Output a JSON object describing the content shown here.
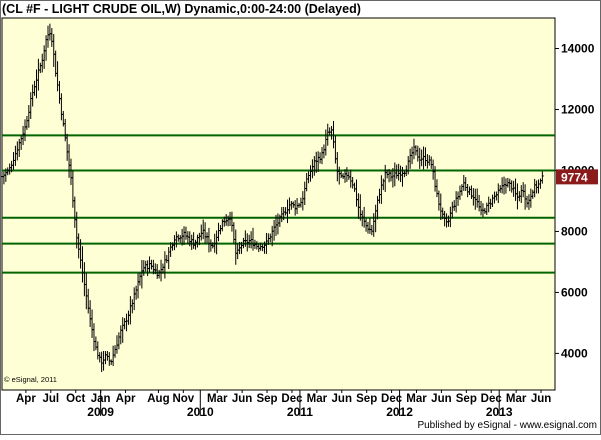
{
  "chart_data": {
    "type": "ohlc",
    "title": "(CL #F - LIGHT CRUDE OIL,W) Dynamic,0:00-24:00 (Delayed)",
    "xlabel": "",
    "ylabel": "",
    "ylim": [
      2800,
      15000
    ],
    "y_ticks": [
      4000,
      6000,
      8000,
      10000,
      12000,
      14000
    ],
    "y_tick_labels": [
      "4000",
      "6000",
      "8000",
      "10000",
      "12000",
      "14000"
    ],
    "x_month_labels": [
      "Apr",
      "Jul",
      "Oct",
      "Jan",
      "Apr",
      "Aug",
      "Nov",
      "Mar",
      "Jun",
      "Sep",
      "Dec",
      "Mar",
      "Jun",
      "Sep",
      "Dec",
      "Mar",
      "Jun",
      "Sep",
      "Dec",
      "Mar",
      "Jun"
    ],
    "x_year_labels": [
      "2009",
      "2010",
      "2011",
      "2012",
      "2013"
    ],
    "last_price_label": "9774",
    "horizontal_lines": [
      11150,
      10000,
      8450,
      7600,
      6650
    ],
    "grid": false,
    "series": [
      {
        "bar_color": "#000000",
        "close_path": [
          [
            2008.01,
            9800
          ],
          [
            2008.08,
            10000
          ],
          [
            2008.16,
            10700
          ],
          [
            2008.24,
            11400
          ],
          [
            2008.32,
            12600
          ],
          [
            2008.41,
            13600
          ],
          [
            2008.46,
            14400
          ],
          [
            2008.5,
            14600
          ],
          [
            2008.55,
            13200
          ],
          [
            2008.62,
            11600
          ],
          [
            2008.7,
            9800
          ],
          [
            2008.76,
            7800
          ],
          [
            2008.84,
            6200
          ],
          [
            2008.9,
            5000
          ],
          [
            2008.95,
            4200
          ],
          [
            2009.0,
            3700
          ],
          [
            2009.05,
            3900
          ],
          [
            2009.1,
            3700
          ],
          [
            2009.14,
            4100
          ],
          [
            2009.2,
            4700
          ],
          [
            2009.27,
            5200
          ],
          [
            2009.35,
            6000
          ],
          [
            2009.42,
            6800
          ],
          [
            2009.5,
            6900
          ],
          [
            2009.58,
            6600
          ],
          [
            2009.66,
            7100
          ],
          [
            2009.74,
            7800
          ],
          [
            2009.84,
            7900
          ],
          [
            2009.94,
            7600
          ],
          [
            2010.02,
            8000
          ],
          [
            2010.12,
            7500
          ],
          [
            2010.22,
            8300
          ],
          [
            2010.3,
            8500
          ],
          [
            2010.36,
            7200
          ],
          [
            2010.42,
            7600
          ],
          [
            2010.5,
            7700
          ],
          [
            2010.58,
            7500
          ],
          [
            2010.66,
            7600
          ],
          [
            2010.74,
            8100
          ],
          [
            2010.82,
            8500
          ],
          [
            2010.9,
            8900
          ],
          [
            2010.96,
            8800
          ],
          [
            2011.02,
            9000
          ],
          [
            2011.08,
            9800
          ],
          [
            2011.15,
            10300
          ],
          [
            2011.22,
            10500
          ],
          [
            2011.28,
            11200
          ],
          [
            2011.32,
            11300
          ],
          [
            2011.37,
            10000
          ],
          [
            2011.42,
            9700
          ],
          [
            2011.48,
            9900
          ],
          [
            2011.54,
            9500
          ],
          [
            2011.6,
            8600
          ],
          [
            2011.66,
            8200
          ],
          [
            2011.72,
            8000
          ],
          [
            2011.8,
            9300
          ],
          [
            2011.86,
            9900
          ],
          [
            2011.92,
            9800
          ],
          [
            2011.98,
            9900
          ],
          [
            2012.06,
            10000
          ],
          [
            2012.14,
            10700
          ],
          [
            2012.2,
            10400
          ],
          [
            2012.26,
            10400
          ],
          [
            2012.32,
            10200
          ],
          [
            2012.38,
            9100
          ],
          [
            2012.44,
            8400
          ],
          [
            2012.48,
            8200
          ],
          [
            2012.52,
            8700
          ],
          [
            2012.58,
            9100
          ],
          [
            2012.64,
            9600
          ],
          [
            2012.7,
            9300
          ],
          [
            2012.76,
            9100
          ],
          [
            2012.82,
            8600
          ],
          [
            2012.88,
            8800
          ],
          [
            2012.94,
            9100
          ],
          [
            2013.0,
            9300
          ],
          [
            2013.06,
            9600
          ],
          [
            2013.12,
            9500
          ],
          [
            2013.18,
            9100
          ],
          [
            2013.24,
            9400
          ],
          [
            2013.28,
            8900
          ],
          [
            2013.34,
            9400
          ],
          [
            2013.4,
            9550
          ],
          [
            2013.44,
            9774
          ]
        ]
      }
    ]
  },
  "footer": {
    "copyright": "© eSignal, 2011",
    "published": "Published by eSignal - www.esignal.com"
  },
  "colors": {
    "background": "#ffffff",
    "plot_background": "#ffffd6",
    "border": "#000000",
    "hline": "#006400",
    "last_price_bg": "#8b1a1a",
    "last_price_text": "#ffffff",
    "bar": "#000000"
  }
}
